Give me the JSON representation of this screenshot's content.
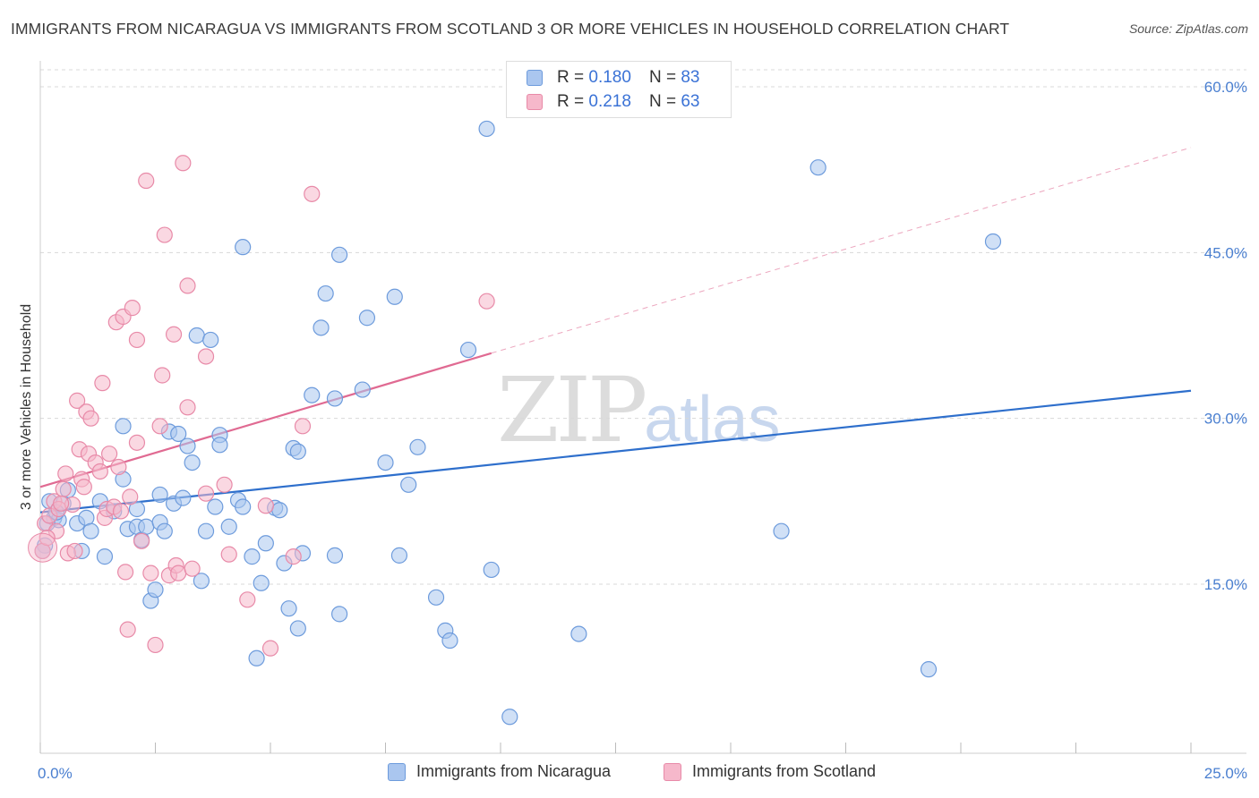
{
  "title": "IMMIGRANTS FROM NICARAGUA VS IMMIGRANTS FROM SCOTLAND 3 OR MORE VEHICLES IN HOUSEHOLD CORRELATION CHART",
  "source": "Source: ZipAtlas.com",
  "watermark": {
    "zip": "ZIP",
    "atlas": "atlas"
  },
  "legend": {
    "r_label": "R =",
    "n_label": "N =",
    "nicaragua": {
      "r": "0.180",
      "n": "83"
    },
    "scotland": {
      "r": "0.218",
      "n": "63"
    }
  },
  "colors": {
    "blue_fill": "#aac6ef",
    "blue_stroke": "#6d9bdc",
    "blue_line": "#2e6fcc",
    "pink_fill": "#f6b8cb",
    "pink_stroke": "#e88aa8",
    "pink_line": "#e06a92",
    "grid": "#d8d8d8",
    "tick_text": "#4a7fd0"
  },
  "chart_data": {
    "type": "scatter",
    "title": "IMMIGRANTS FROM NICARAGUA VS IMMIGRANTS FROM SCOTLAND 3 OR MORE VEHICLES IN HOUSEHOLD CORRELATION CHART",
    "xlabel": "",
    "ylabel": "3 or more Vehicles in Household",
    "xlim": [
      0,
      25
    ],
    "ylim": [
      0,
      60
    ],
    "x_ticks": [
      0,
      2.5,
      5,
      7.5,
      10,
      12.5,
      15,
      17.5,
      20,
      22.5,
      25
    ],
    "x_tick_labels": {
      "0": "0.0%",
      "25": "25.0%"
    },
    "y_ticks": [
      15,
      30,
      45,
      60
    ],
    "y_tick_labels": [
      "15.0%",
      "30.0%",
      "45.0%",
      "60.0%"
    ],
    "grid": true,
    "series": [
      {
        "name": "Immigrants from Nicaragua",
        "color": "blue",
        "trend": {
          "x0": 0,
          "y0": 21.5,
          "x1": 25,
          "y1": 32.5,
          "dashed_to": null
        },
        "points": [
          [
            0.1,
            18.5
          ],
          [
            0.2,
            22.5
          ],
          [
            0.3,
            21.0
          ],
          [
            0.4,
            20.8
          ],
          [
            0.5,
            22.3
          ],
          [
            0.6,
            23.5
          ],
          [
            0.8,
            20.5
          ],
          [
            0.9,
            18.0
          ],
          [
            1.0,
            21.0
          ],
          [
            1.1,
            19.8
          ],
          [
            1.3,
            22.5
          ],
          [
            1.4,
            17.5
          ],
          [
            1.6,
            21.6
          ],
          [
            1.8,
            24.5
          ],
          [
            1.8,
            29.3
          ],
          [
            1.9,
            20.0
          ],
          [
            2.1,
            21.8
          ],
          [
            2.1,
            20.2
          ],
          [
            2.2,
            19.0
          ],
          [
            2.3,
            20.2
          ],
          [
            2.4,
            13.5
          ],
          [
            2.5,
            14.5
          ],
          [
            2.6,
            20.6
          ],
          [
            2.6,
            23.1
          ],
          [
            2.7,
            19.8
          ],
          [
            2.8,
            28.8
          ],
          [
            2.9,
            22.3
          ],
          [
            3.0,
            28.6
          ],
          [
            3.1,
            22.8
          ],
          [
            3.2,
            27.5
          ],
          [
            3.3,
            26.0
          ],
          [
            3.4,
            37.5
          ],
          [
            3.5,
            15.3
          ],
          [
            3.6,
            19.8
          ],
          [
            3.7,
            37.1
          ],
          [
            3.8,
            22.0
          ],
          [
            3.9,
            28.5
          ],
          [
            3.9,
            27.6
          ],
          [
            4.1,
            20.2
          ],
          [
            4.3,
            22.6
          ],
          [
            4.4,
            22.0
          ],
          [
            4.4,
            45.5
          ],
          [
            4.6,
            17.5
          ],
          [
            4.7,
            8.3
          ],
          [
            4.8,
            15.1
          ],
          [
            4.9,
            18.7
          ],
          [
            5.1,
            21.9
          ],
          [
            5.2,
            21.7
          ],
          [
            5.3,
            16.9
          ],
          [
            5.4,
            12.8
          ],
          [
            5.5,
            27.3
          ],
          [
            5.6,
            11.0
          ],
          [
            5.6,
            27.0
          ],
          [
            5.7,
            17.8
          ],
          [
            5.9,
            32.1
          ],
          [
            6.1,
            38.2
          ],
          [
            6.2,
            41.3
          ],
          [
            6.4,
            31.8
          ],
          [
            6.4,
            17.6
          ],
          [
            6.5,
            44.8
          ],
          [
            6.5,
            12.3
          ],
          [
            7.0,
            32.6
          ],
          [
            7.1,
            39.1
          ],
          [
            7.5,
            26.0
          ],
          [
            7.7,
            41.0
          ],
          [
            7.8,
            17.6
          ],
          [
            8.0,
            24.0
          ],
          [
            8.2,
            27.4
          ],
          [
            8.6,
            13.8
          ],
          [
            8.8,
            10.8
          ],
          [
            8.9,
            9.9
          ],
          [
            9.3,
            36.2
          ],
          [
            9.7,
            56.2
          ],
          [
            9.8,
            16.3
          ],
          [
            10.2,
            3.0
          ],
          [
            11.7,
            10.5
          ],
          [
            16.1,
            19.8
          ],
          [
            16.9,
            52.7
          ],
          [
            19.3,
            7.3
          ],
          [
            20.7,
            46.0
          ],
          [
            0.05,
            18.0
          ],
          [
            0.15,
            20.5
          ],
          [
            0.35,
            21.5
          ]
        ]
      },
      {
        "name": "Immigrants from Scotland",
        "color": "pink",
        "trend": {
          "x0": 0,
          "y0": 23.8,
          "x1": 9.8,
          "y1": 35.9,
          "dashed_to": {
            "x": 25,
            "y": 54.5
          }
        },
        "points": [
          [
            0.05,
            18.0
          ],
          [
            0.1,
            20.5
          ],
          [
            0.2,
            21.2
          ],
          [
            0.3,
            22.5
          ],
          [
            0.35,
            19.8
          ],
          [
            0.4,
            21.8
          ],
          [
            0.5,
            23.6
          ],
          [
            0.55,
            25.0
          ],
          [
            0.6,
            17.8
          ],
          [
            0.7,
            22.2
          ],
          [
            0.75,
            18.0
          ],
          [
            0.8,
            31.6
          ],
          [
            0.85,
            27.2
          ],
          [
            0.9,
            24.5
          ],
          [
            0.95,
            23.8
          ],
          [
            1.0,
            30.6
          ],
          [
            1.05,
            26.8
          ],
          [
            1.1,
            30.0
          ],
          [
            1.2,
            26.0
          ],
          [
            1.3,
            25.2
          ],
          [
            1.35,
            33.2
          ],
          [
            1.4,
            21.0
          ],
          [
            1.45,
            21.8
          ],
          [
            1.5,
            26.8
          ],
          [
            1.6,
            22.0
          ],
          [
            1.65,
            38.7
          ],
          [
            1.7,
            25.6
          ],
          [
            1.75,
            21.6
          ],
          [
            1.8,
            39.2
          ],
          [
            1.85,
            16.1
          ],
          [
            1.9,
            10.9
          ],
          [
            1.95,
            22.9
          ],
          [
            2.0,
            40.0
          ],
          [
            2.1,
            37.1
          ],
          [
            2.1,
            27.8
          ],
          [
            2.2,
            18.9
          ],
          [
            2.3,
            51.5
          ],
          [
            2.4,
            16.0
          ],
          [
            2.5,
            9.5
          ],
          [
            2.6,
            29.3
          ],
          [
            2.65,
            33.9
          ],
          [
            2.7,
            46.6
          ],
          [
            2.8,
            15.8
          ],
          [
            2.9,
            37.6
          ],
          [
            2.95,
            16.7
          ],
          [
            3.0,
            16.0
          ],
          [
            3.1,
            53.1
          ],
          [
            3.2,
            31.0
          ],
          [
            3.2,
            42.0
          ],
          [
            3.3,
            16.4
          ],
          [
            3.6,
            23.2
          ],
          [
            3.6,
            35.6
          ],
          [
            4.0,
            24.0
          ],
          [
            4.1,
            17.7
          ],
          [
            4.5,
            13.6
          ],
          [
            4.9,
            22.1
          ],
          [
            5.0,
            9.2
          ],
          [
            5.5,
            17.5
          ],
          [
            5.7,
            29.3
          ],
          [
            5.9,
            50.3
          ],
          [
            9.7,
            40.6
          ],
          [
            0.15,
            19.2
          ],
          [
            0.45,
            22.3
          ]
        ]
      }
    ]
  },
  "bottom_legend": {
    "nicaragua": "Immigrants from Nicaragua",
    "scotland": "Immigrants from Scotland"
  }
}
